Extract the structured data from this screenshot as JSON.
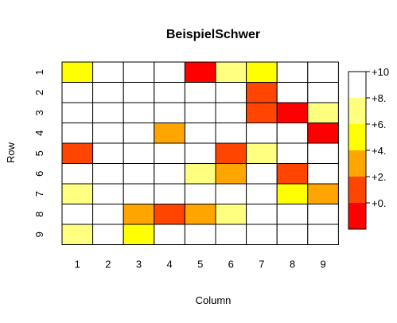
{
  "chart_data": {
    "type": "heatmap",
    "title": "BeispielSchwer",
    "xlabel": "Column",
    "ylabel": "Row",
    "x_categories": [
      "1",
      "2",
      "3",
      "4",
      "5",
      "6",
      "7",
      "8",
      "9"
    ],
    "y_categories": [
      "1",
      "2",
      "3",
      "4",
      "5",
      "6",
      "7",
      "8",
      "9"
    ],
    "grid": true,
    "legend_position": "right",
    "color_bands": [
      {
        "label": "+0.",
        "color": "#ff0000"
      },
      {
        "label": "+2.",
        "color": "#ff4500"
      },
      {
        "label": "+4.",
        "color": "#ffa500"
      },
      {
        "label": "+6.",
        "color": "#ffff00"
      },
      {
        "label": "+8.",
        "color": "#ffff80"
      },
      {
        "label": "+10",
        "color": "#ffffff"
      }
    ],
    "values": [
      [
        7,
        null,
        null,
        null,
        1,
        9,
        7,
        null,
        null
      ],
      [
        null,
        null,
        null,
        null,
        null,
        null,
        3,
        null,
        null
      ],
      [
        null,
        null,
        null,
        null,
        null,
        null,
        3,
        1,
        9
      ],
      [
        null,
        null,
        null,
        5,
        null,
        null,
        null,
        null,
        1
      ],
      [
        3,
        null,
        null,
        null,
        null,
        3,
        9,
        null,
        null
      ],
      [
        null,
        null,
        null,
        null,
        9,
        5,
        null,
        3,
        null
      ],
      [
        9,
        null,
        null,
        null,
        null,
        null,
        null,
        7,
        5
      ],
      [
        null,
        null,
        5,
        3,
        5,
        9,
        null,
        null,
        null
      ],
      [
        9,
        null,
        7,
        null,
        null,
        null,
        null,
        null,
        null
      ]
    ]
  }
}
